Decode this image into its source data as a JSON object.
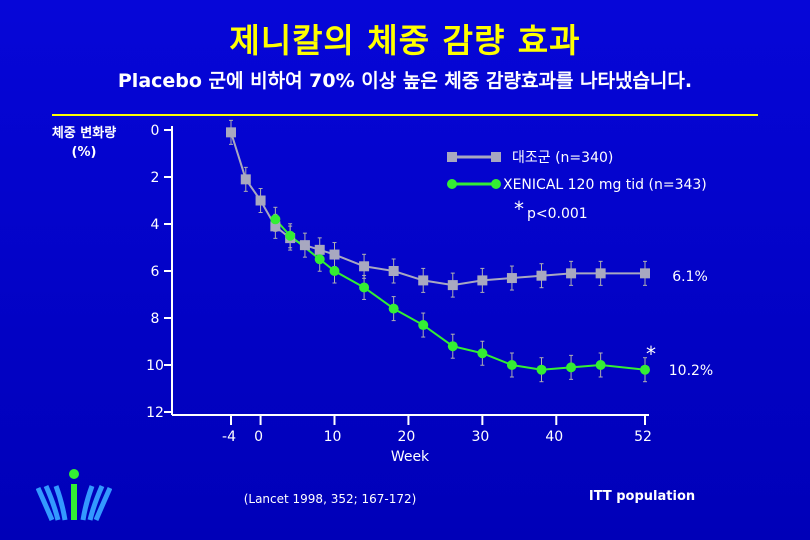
{
  "header": {
    "title": "제니칼의 체중 감량 효과",
    "subtitle": "Placebo 군에 비하여 70% 이상 높은 체중 감량효과를 나타냈습니다."
  },
  "colors": {
    "placebo": "#a8a8c0",
    "xenical": "#33ee33",
    "title": "#ffff00",
    "background": "#0000c8"
  },
  "chart_data": {
    "type": "line",
    "ylabel_line1": "체중 변화량",
    "ylabel_line2": "(%)",
    "xlabel": "Week",
    "y_ticks": [
      "0",
      "2",
      "4",
      "6",
      "8",
      "10",
      "12"
    ],
    "x_ticks": [
      "-4",
      "0",
      "10",
      "20",
      "30",
      "40",
      "52"
    ],
    "ylim": [
      0,
      12
    ],
    "y_inverted": true,
    "series": [
      {
        "name": "대조군 (n=340)",
        "color": "#a8a8c0",
        "marker": "square",
        "x": [
          -4,
          -2,
          0,
          2,
          4,
          6,
          8,
          10,
          14,
          18,
          22,
          26,
          30,
          34,
          38,
          42,
          46,
          52
        ],
        "y": [
          0.1,
          2.1,
          3.0,
          4.1,
          4.6,
          4.9,
          5.1,
          5.3,
          5.8,
          6.0,
          6.4,
          6.6,
          6.4,
          6.3,
          6.2,
          6.1,
          6.1,
          6.1
        ]
      },
      {
        "name": "XENICAL 120 mg tid (n=343)",
        "color": "#33ee33",
        "marker": "circle",
        "x": [
          2,
          4,
          8,
          10,
          14,
          18,
          22,
          26,
          30,
          34,
          38,
          42,
          46,
          52
        ],
        "y": [
          3.8,
          4.5,
          5.5,
          6.0,
          6.7,
          7.6,
          8.3,
          9.2,
          9.5,
          10.0,
          10.2,
          10.1,
          10.0,
          10.2
        ]
      }
    ],
    "end_labels": [
      "6.1%",
      "10.2%"
    ],
    "significance_mark": "*",
    "significance_text": "p<0.001"
  },
  "footer": {
    "citation": "(Lancet 1998, 352; 167-172)",
    "population": "ITT population"
  }
}
